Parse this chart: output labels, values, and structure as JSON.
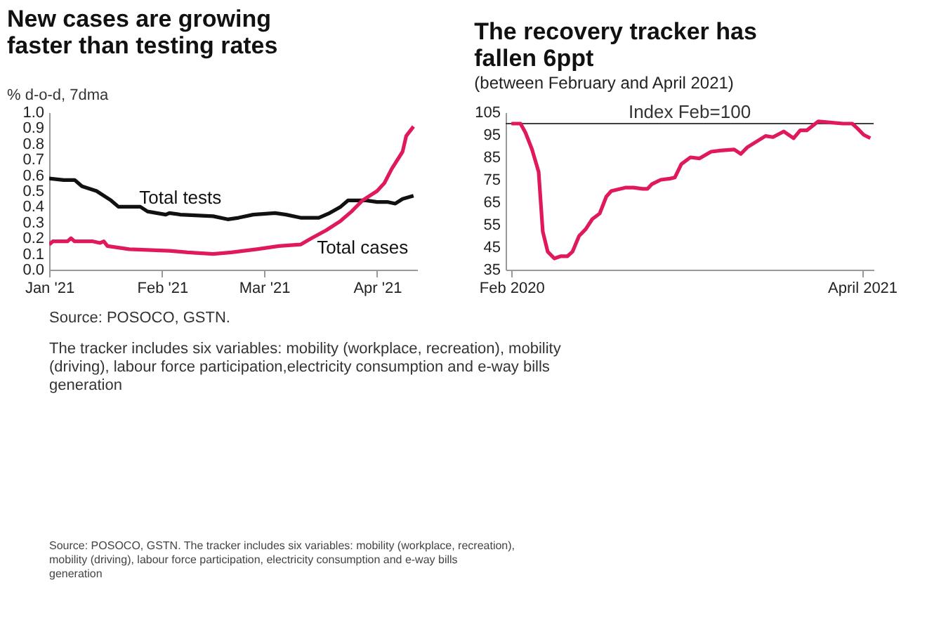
{
  "chart_data": [
    {
      "type": "line",
      "title": "New cases are growing faster than testing rates",
      "ylabel": "% d-o-d, 7dma",
      "xlim": [
        "2021-01-01",
        "2021-04-12"
      ],
      "xticks": [
        {
          "value": "2021-01-01",
          "label": "Jan '21"
        },
        {
          "value": "2021-02-01",
          "label": "Feb '21"
        },
        {
          "value": "2021-03-01",
          "label": "Mar '21"
        },
        {
          "value": "2021-04-01",
          "label": "Apr '21"
        }
      ],
      "ylim": [
        0,
        1
      ],
      "yticks": [
        {
          "value": 0,
          "label": "0.0"
        },
        0.1,
        0.2,
        0.3,
        0.4,
        0.5,
        0.6,
        0.7,
        0.8,
        0.9,
        {
          "value": 1,
          "label": "1.0"
        }
      ],
      "grid": false,
      "marker": "none",
      "line_style": "solid",
      "series": [
        {
          "name": "Total tests",
          "color": "#111111",
          "x": [
            "2021-01-01",
            "2021-01-05",
            "2021-01-08",
            "2021-01-10",
            "2021-01-14",
            "2021-01-18",
            "2021-01-20",
            "2021-01-26",
            "2021-01-28",
            "2021-02-02",
            "2021-02-03",
            "2021-02-06",
            "2021-02-15",
            "2021-02-19",
            "2021-02-22",
            "2021-02-26",
            "2021-03-04",
            "2021-03-07",
            "2021-03-11",
            "2021-03-16",
            "2021-03-19",
            "2021-03-22",
            "2021-03-24",
            "2021-03-29",
            "2021-04-01",
            "2021-04-04",
            "2021-04-06",
            "2021-04-08",
            "2021-04-11"
          ],
          "values": [
            0.58,
            0.57,
            0.57,
            0.53,
            0.5,
            0.44,
            0.4,
            0.4,
            0.37,
            0.35,
            0.36,
            0.35,
            0.34,
            0.32,
            0.33,
            0.35,
            0.36,
            0.35,
            0.33,
            0.33,
            0.36,
            0.4,
            0.44,
            0.44,
            0.43,
            0.43,
            0.42,
            0.45,
            0.47
          ]
        },
        {
          "name": "Total cases",
          "color": "#e0195a",
          "x": [
            "2021-01-01",
            "2021-01-02",
            "2021-01-06",
            "2021-01-07",
            "2021-01-08",
            "2021-01-13",
            "2021-01-15",
            "2021-01-16",
            "2021-01-17",
            "2021-01-23",
            "2021-02-03",
            "2021-02-08",
            "2021-02-15",
            "2021-02-20",
            "2021-02-27",
            "2021-03-05",
            "2021-03-11",
            "2021-03-14",
            "2021-03-18",
            "2021-03-22",
            "2021-03-25",
            "2021-03-28",
            "2021-04-01",
            "2021-04-03",
            "2021-04-05",
            "2021-04-08",
            "2021-04-09",
            "2021-04-11"
          ],
          "values": [
            0.16,
            0.18,
            0.18,
            0.2,
            0.18,
            0.18,
            0.17,
            0.18,
            0.15,
            0.13,
            0.12,
            0.11,
            0.1,
            0.11,
            0.13,
            0.15,
            0.16,
            0.2,
            0.25,
            0.31,
            0.37,
            0.44,
            0.5,
            0.55,
            0.64,
            0.75,
            0.85,
            0.91
          ]
        }
      ],
      "annotations": [
        "Source: POSOCO, GSTN.",
        "The tracker includes six variables: mobility (workplace, recreation), mobility (driving), labour force participation,electricity consumption and e-way bills generation",
        "Source: POSOCO, GSTN. The tracker includes six variables: mobility (workplace, recreation), mobility (driving), labour force participation, electricity consumption and e-way bills generation"
      ]
    },
    {
      "type": "line",
      "title": "The recovery tracker has fallen 6ppt",
      "subtitle": "(between February and April 2021)",
      "xlim": [
        "2020-01-25",
        "2021-04-15"
      ],
      "xticks": [
        {
          "value": "2020-02-01",
          "label": "Feb 2020"
        },
        {
          "value": "2021-04-01",
          "label": "April 2021"
        }
      ],
      "ylim": [
        35,
        105
      ],
      "yticks": [
        35,
        45,
        55,
        65,
        75,
        85,
        95,
        105
      ],
      "grid": false,
      "marker": "none",
      "line_style": "solid",
      "ref_lines": [
        {
          "axis": "y",
          "value": 100,
          "label": "Index Feb=100",
          "color": "#404040"
        }
      ],
      "series": [
        {
          "color": "#e0195a",
          "x": [
            "2020-02-01",
            "2020-02-12",
            "2020-02-18",
            "2020-02-26",
            "2020-03-05",
            "2020-03-10",
            "2020-03-16",
            "2020-03-24",
            "2020-04-01",
            "2020-04-09",
            "2020-04-15",
            "2020-04-23",
            "2020-05-01",
            "2020-05-09",
            "2020-05-18",
            "2020-05-26",
            "2020-06-01",
            "2020-06-18",
            "2020-06-28",
            "2020-07-09",
            "2020-07-15",
            "2020-07-20",
            "2020-07-31",
            "2020-08-11",
            "2020-08-17",
            "2020-08-25",
            "2020-09-05",
            "2020-09-16",
            "2020-09-30",
            "2020-10-11",
            "2020-10-28",
            "2020-11-05",
            "2020-11-13",
            "2020-11-24",
            "2020-12-05",
            "2020-12-14",
            "2020-12-27",
            "2021-01-08",
            "2021-01-16",
            "2021-01-24",
            "2021-02-07",
            "2021-02-21",
            "2021-03-09",
            "2021-03-20",
            "2021-03-26",
            "2021-04-03",
            "2021-04-11"
          ],
          "values": [
            100,
            100,
            96,
            88.5,
            78.5,
            52,
            43,
            40,
            41,
            41,
            43,
            50,
            53,
            57.5,
            60,
            67.5,
            70,
            71.5,
            71.5,
            71,
            71,
            73,
            75,
            75.5,
            76,
            82,
            85,
            84.5,
            87.5,
            88,
            88.5,
            86.5,
            89.5,
            92,
            94.5,
            94,
            96.5,
            93.5,
            97,
            97,
            101,
            100.5,
            100,
            100,
            98,
            95,
            93.5
          ]
        }
      ]
    }
  ]
}
